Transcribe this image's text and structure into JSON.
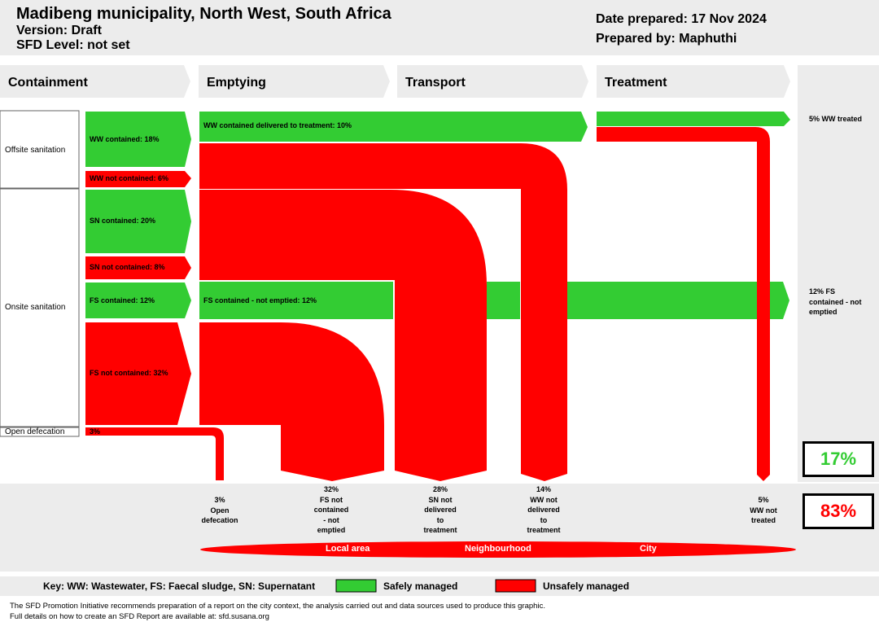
{
  "header": {
    "title": "Madibeng municipality, North West, South Africa",
    "version": "Version: Draft",
    "sfd_level": "SFD Level: not set",
    "date_prepared": "Date prepared: 17 Nov 2024",
    "prepared_by": "Prepared by: Maphuthi"
  },
  "stages": [
    "Containment",
    "Emptying",
    "Transport",
    "Treatment"
  ],
  "containment_types": {
    "offsite": "Offsite sanitation",
    "onsite": "Onsite sanitation",
    "open": "Open defecation"
  },
  "flows": {
    "ww_contained": "WW contained: 18%",
    "ww_not_contained": "WW not contained: 6%",
    "sn_contained": "SN contained: 20%",
    "sn_not_contained": "SN not contained: 8%",
    "fs_contained": "FS contained: 12%",
    "fs_not_contained": "FS not contained: 32%",
    "od": "3%",
    "ww_delivered": "WW contained delivered to treatment: 10%",
    "fs_not_emptied": "FS contained - not emptied: 12%"
  },
  "outcomes": {
    "ww_treated": "5% WW treated",
    "fs_contained_not_emptied": [
      "12% FS",
      "contained - not",
      "emptied"
    ]
  },
  "bottom_labels": [
    [
      "3%",
      "Open",
      "defecation"
    ],
    [
      "32%",
      "FS not",
      "contained",
      "- not",
      "emptied"
    ],
    [
      "28%",
      "SN not",
      "delivered",
      "to",
      "treatment"
    ],
    [
      "14%",
      "WW not",
      "delivered",
      "to",
      "treatment"
    ],
    [
      "5%",
      "WW not",
      "treated"
    ]
  ],
  "safe_percent": "17%",
  "unsafe_percent": "83%",
  "areas": [
    "Local area",
    "Neighbourhood",
    "City"
  ],
  "key": {
    "text": "Key: WW: Wastewater, FS: Faecal sludge, SN: Supernatant",
    "safe": "Safely managed",
    "unsafe": "Unsafely managed"
  },
  "footer": [
    "The SFD Promotion Initiative recommends preparation of a report on the city context, the analysis carried out and data sources used to produce this graphic.",
    "Full details on how to create an SFD Report are available at: sfd.susana.org"
  ],
  "colors": {
    "safe": "#33cc33",
    "unsafe": "#ff0000",
    "band": "#ececec",
    "safe_text": "#33cc33",
    "unsafe_text": "#ff0000"
  }
}
